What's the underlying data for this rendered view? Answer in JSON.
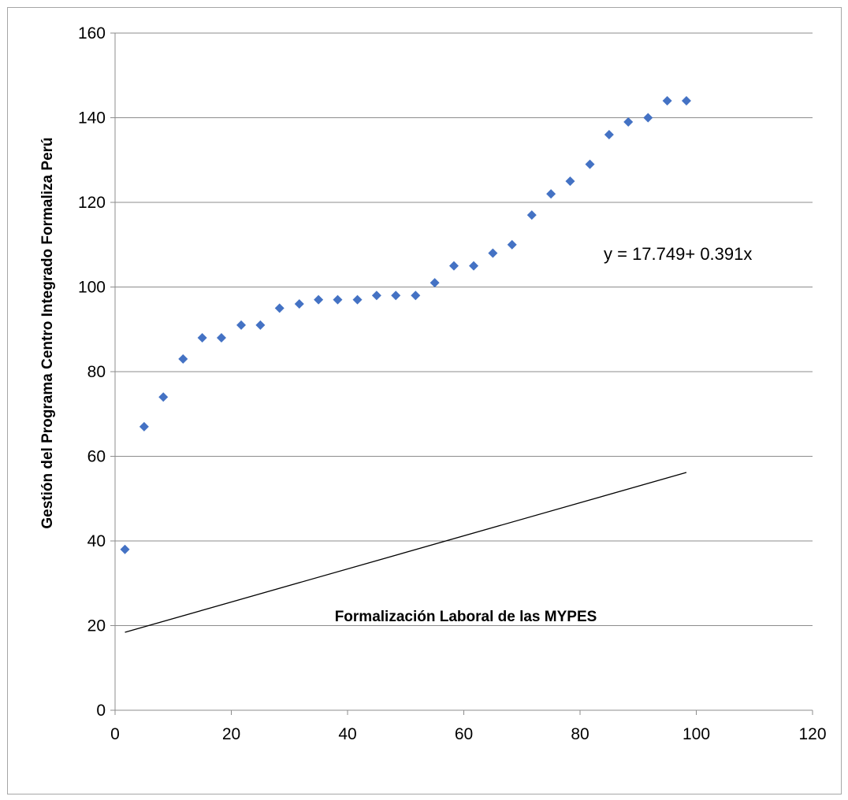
{
  "chart_data": {
    "type": "scatter",
    "xlabel": "Formalización Laboral de las MYPES",
    "ylabel": "Gestión del Programa Centro Integrado Formaliza Perú",
    "xlim": [
      0,
      120
    ],
    "ylim": [
      0,
      160
    ],
    "x_ticks": [
      0,
      20,
      40,
      60,
      80,
      100,
      120
    ],
    "y_ticks": [
      0,
      20,
      40,
      60,
      80,
      100,
      120,
      140,
      160
    ],
    "x_tick_labels": [
      "0",
      "20",
      "40",
      "60",
      "80",
      "100",
      "120"
    ],
    "y_tick_labels": [
      "0",
      "20",
      "40",
      "60",
      "80",
      "100",
      "120",
      "140",
      "160"
    ],
    "grid": "horizontal",
    "marker": "diamond",
    "marker_color": "#4472c4",
    "points": [
      {
        "x": 1.7,
        "y": 38
      },
      {
        "x": 5.0,
        "y": 67
      },
      {
        "x": 8.3,
        "y": 74
      },
      {
        "x": 11.7,
        "y": 83
      },
      {
        "x": 15.0,
        "y": 88
      },
      {
        "x": 18.3,
        "y": 88
      },
      {
        "x": 21.7,
        "y": 91
      },
      {
        "x": 25.0,
        "y": 91
      },
      {
        "x": 28.3,
        "y": 95
      },
      {
        "x": 31.7,
        "y": 96
      },
      {
        "x": 35.0,
        "y": 97
      },
      {
        "x": 38.3,
        "y": 97
      },
      {
        "x": 41.7,
        "y": 97
      },
      {
        "x": 45.0,
        "y": 98
      },
      {
        "x": 48.3,
        "y": 98
      },
      {
        "x": 51.7,
        "y": 98
      },
      {
        "x": 55.0,
        "y": 101
      },
      {
        "x": 58.3,
        "y": 105
      },
      {
        "x": 61.7,
        "y": 105
      },
      {
        "x": 65.0,
        "y": 108
      },
      {
        "x": 68.3,
        "y": 110
      },
      {
        "x": 71.7,
        "y": 117
      },
      {
        "x": 75.0,
        "y": 122
      },
      {
        "x": 78.3,
        "y": 125
      },
      {
        "x": 81.7,
        "y": 129
      },
      {
        "x": 85.0,
        "y": 136
      },
      {
        "x": 88.3,
        "y": 139
      },
      {
        "x": 91.7,
        "y": 140
      },
      {
        "x": 95.0,
        "y": 144
      },
      {
        "x": 98.3,
        "y": 144
      }
    ],
    "trendline": {
      "type": "linear",
      "intercept": 17.749,
      "slope": 0.391,
      "x_range": [
        1.7,
        98.3
      ],
      "color": "#000000"
    },
    "equation_label": "y = 17.749+ 0.391x"
  }
}
